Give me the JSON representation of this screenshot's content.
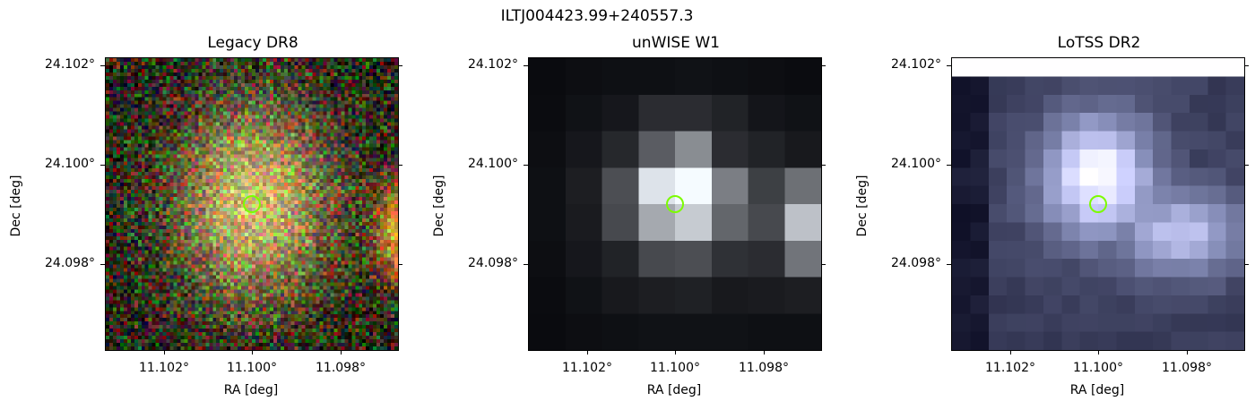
{
  "figure_title": "ILTJ004423.99+240557.3",
  "panels": [
    {
      "title": "Legacy DR8",
      "xlabel": "RA [deg]",
      "ylabel": "Dec [deg]",
      "xticks": [
        "11.102°",
        "11.100°",
        "11.098°"
      ],
      "yticks": [
        "24.102°",
        "24.100°",
        "24.098°"
      ],
      "image_kind": "optical-rgb",
      "marker": {
        "shape": "circle",
        "color": "#7CFC00"
      }
    },
    {
      "title": "unWISE W1",
      "xlabel": "RA [deg]",
      "ylabel": "Dec [deg]",
      "xticks": [
        "11.102°",
        "11.100°",
        "11.098°"
      ],
      "yticks": [
        "24.102°",
        "24.100°",
        "24.098°"
      ],
      "image_kind": "infrared-grayscale",
      "marker": {
        "shape": "circle",
        "color": "#7CFC00"
      }
    },
    {
      "title": "LoTSS DR2",
      "xlabel": "RA [deg]",
      "ylabel": "Dec [deg]",
      "xticks": [
        "11.102°",
        "11.100°",
        "11.098°"
      ],
      "yticks": [
        "24.102°",
        "24.100°",
        "24.098°"
      ],
      "image_kind": "radio-bone",
      "marker": {
        "shape": "circle",
        "color": "#7CFC00"
      }
    }
  ]
}
